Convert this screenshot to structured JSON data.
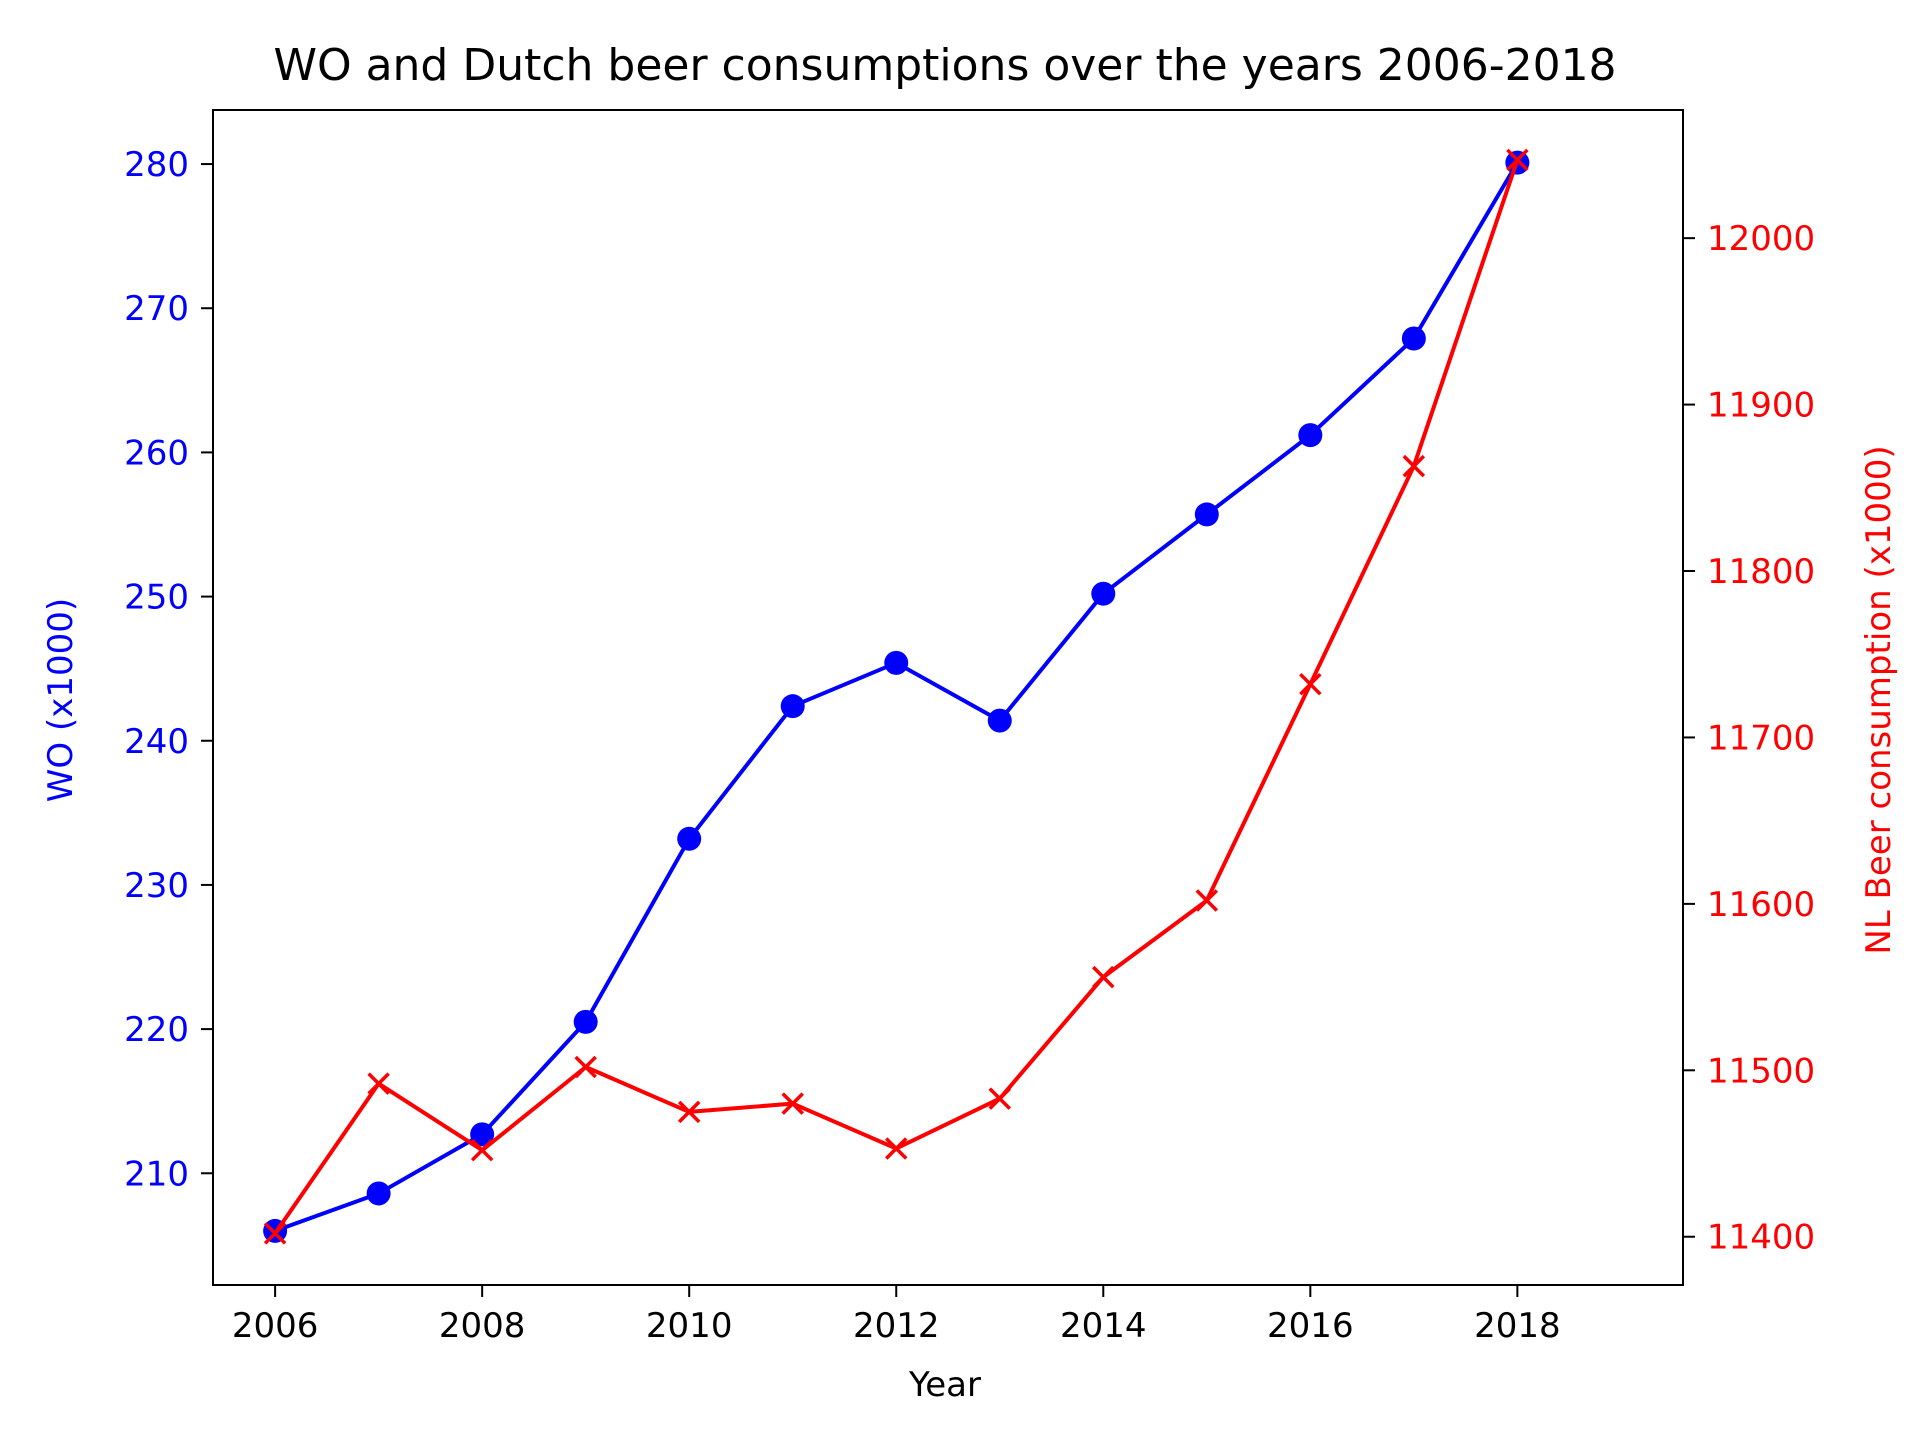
{
  "chart_data": {
    "type": "line",
    "title": "WO and Dutch beer consumptions over the years 2006-2018",
    "xlabel": "Year",
    "ylabel_left": "WO (x1000)",
    "ylabel_right": "NL Beer consumption (x1000)",
    "x": [
      2006,
      2007,
      2008,
      2009,
      2010,
      2011,
      2012,
      2013,
      2014,
      2015,
      2016,
      2017,
      2018
    ],
    "xlim": [
      2005.4,
      2019.6
    ],
    "x_ticks": [
      "2006",
      "2008",
      "2010",
      "2012",
      "2014",
      "2016",
      "2018"
    ],
    "y_left_lim": [
      202.25,
      283.75
    ],
    "y_left_ticks": [
      "210",
      "220",
      "230",
      "240",
      "250",
      "260",
      "270",
      "280"
    ],
    "y_right_lim": [
      11371,
      12077
    ],
    "y_right_ticks": [
      "11400",
      "11500",
      "11600",
      "11700",
      "11800",
      "11900",
      "12000"
    ],
    "grid": false,
    "legend": "none",
    "series": [
      {
        "axis": "left",
        "color": "#0000ff",
        "marker": "circle",
        "values": [
          206.0,
          208.6,
          212.7,
          220.5,
          233.2,
          242.4,
          245.4,
          241.4,
          250.2,
          255.7,
          261.2,
          267.9,
          280.1
        ]
      },
      {
        "axis": "right",
        "color": "#ff0000",
        "marker": "x",
        "values": [
          11402,
          11492,
          11452,
          11502,
          11475,
          11480,
          11453,
          11483,
          11556,
          11602,
          11732,
          11863,
          12047
        ]
      }
    ]
  }
}
